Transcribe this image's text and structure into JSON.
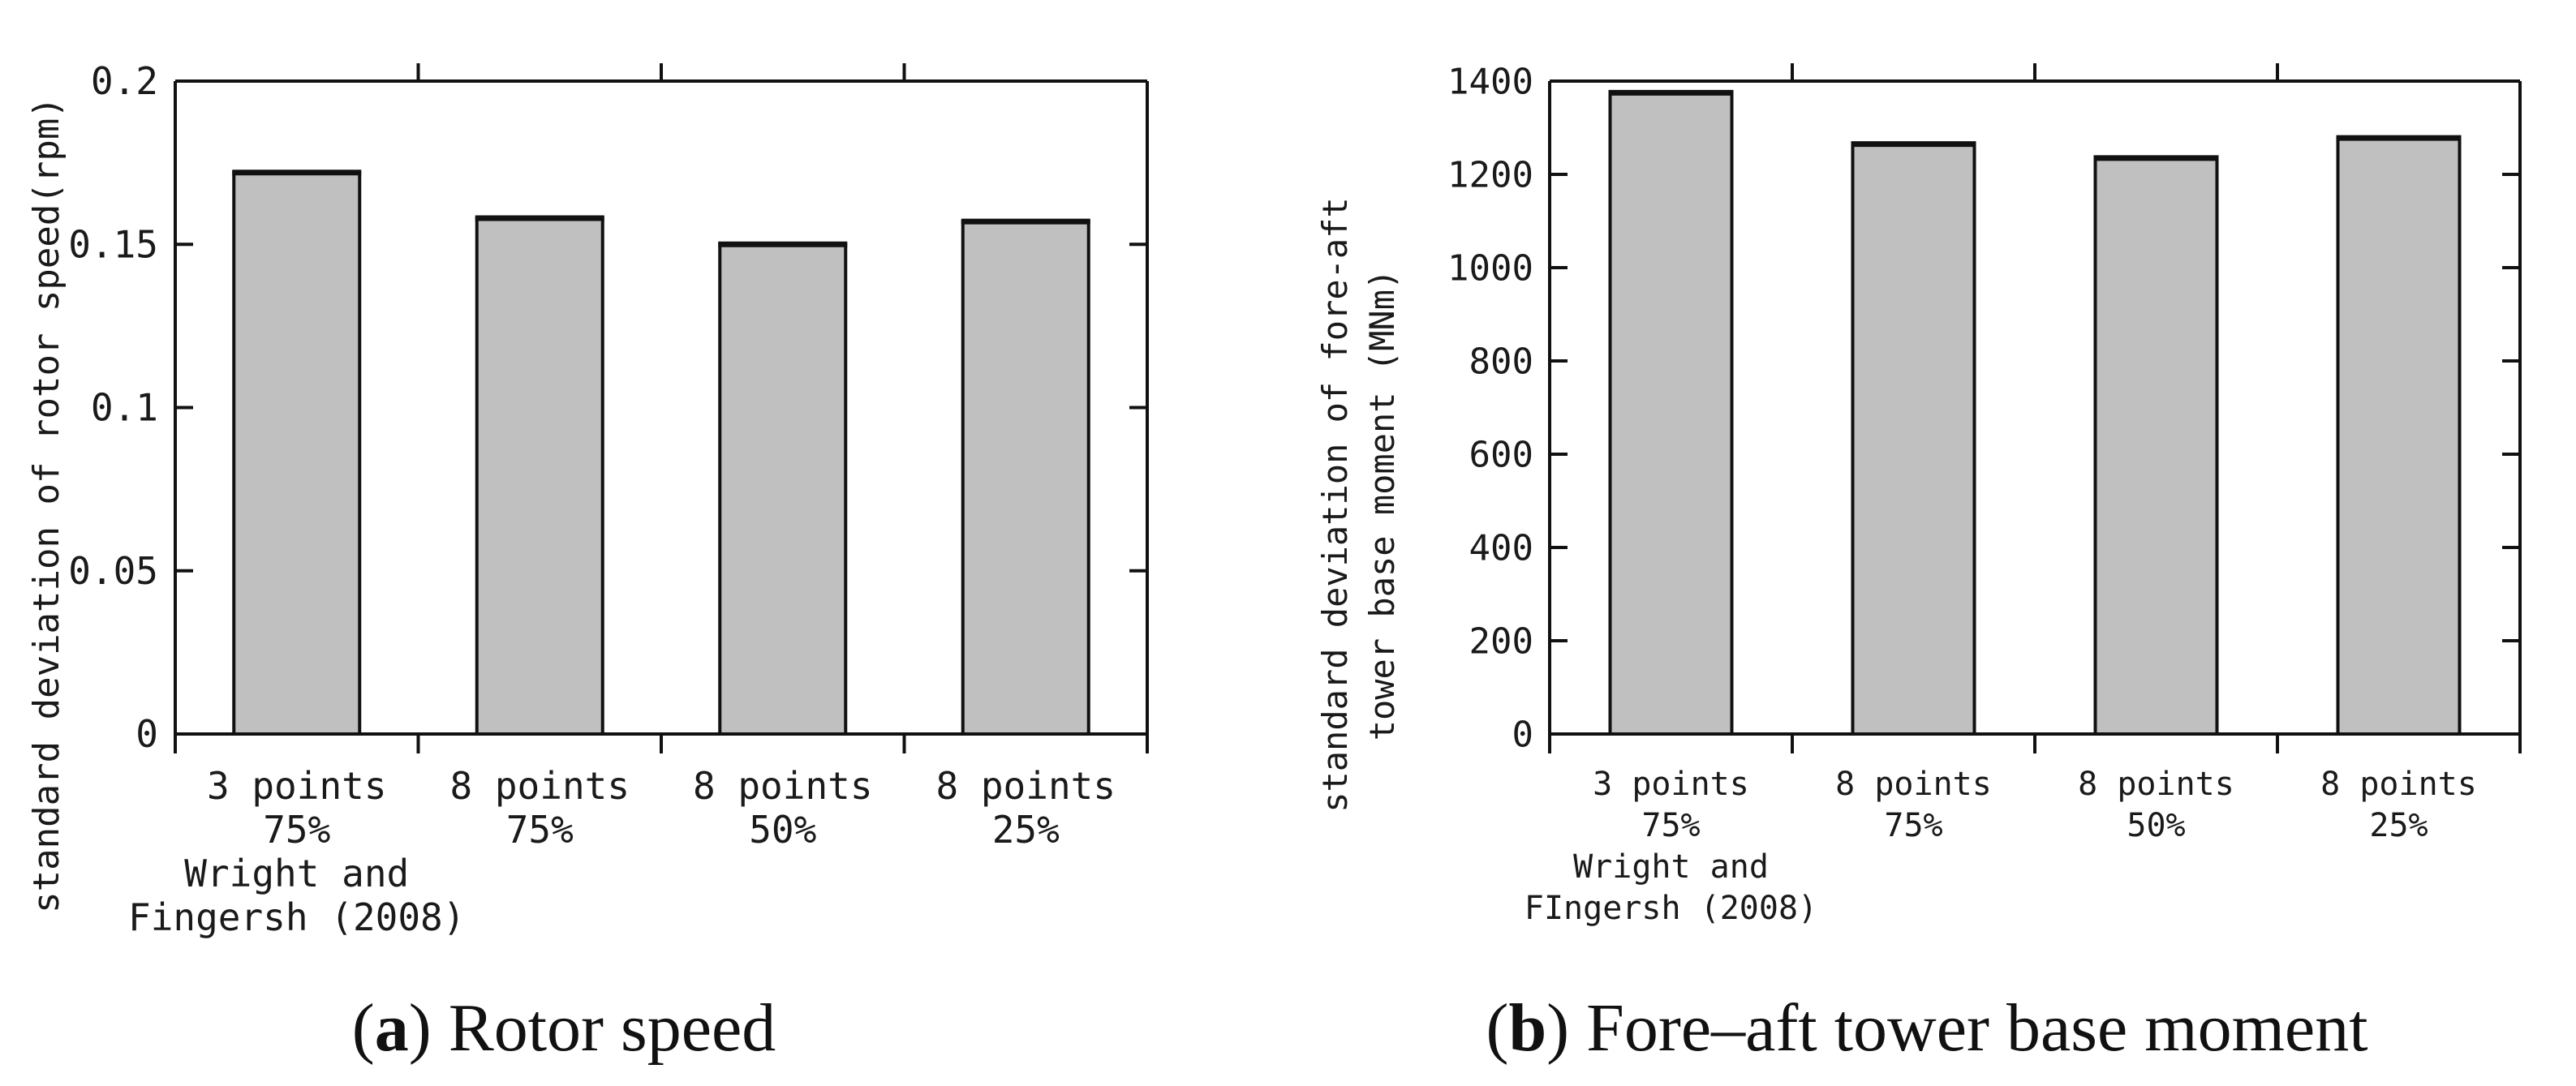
{
  "chart_data": [
    {
      "type": "bar",
      "panel": "a",
      "caption_label": "a",
      "caption_text": " Rotor speed",
      "ylabel": "standard deviation of rotor speed(rpm)",
      "ylim": [
        0,
        0.2
      ],
      "yticks": [
        "0",
        "0.05",
        "0.1",
        "0.15",
        "0.2"
      ],
      "ytick_values": [
        0,
        0.05,
        0.1,
        0.15,
        0.2
      ],
      "categories": [
        [
          "3 points",
          "75%",
          "Wright and",
          "Fingersh (2008)"
        ],
        [
          "8 points",
          "75%"
        ],
        [
          "8 points",
          "50%"
        ],
        [
          "8 points",
          "25%"
        ]
      ],
      "values": [
        0.172,
        0.158,
        0.15,
        0.157
      ],
      "colors": {
        "bar": "#c0c0c0",
        "axis": "#111111"
      }
    },
    {
      "type": "bar",
      "panel": "b",
      "caption_label": "b",
      "caption_text": " Fore–aft tower base moment",
      "ylabel": [
        "standard deviation of fore-aft",
        "tower base moment (MNm)"
      ],
      "ylim": [
        0,
        1400
      ],
      "yticks": [
        "0",
        "200",
        "400",
        "600",
        "800",
        "1000",
        "1200",
        "1400"
      ],
      "ytick_values": [
        0,
        200,
        400,
        600,
        800,
        1000,
        1200,
        1400
      ],
      "categories": [
        [
          "3 points",
          "75%",
          "Wright and",
          "FIngersh (2008)"
        ],
        [
          "8 points",
          "75%"
        ],
        [
          "8 points",
          "50%"
        ],
        [
          "8 points",
          "25%"
        ]
      ],
      "values": [
        1375,
        1265,
        1235,
        1278
      ],
      "colors": {
        "bar": "#c0c0c0",
        "axis": "#111111"
      }
    }
  ]
}
